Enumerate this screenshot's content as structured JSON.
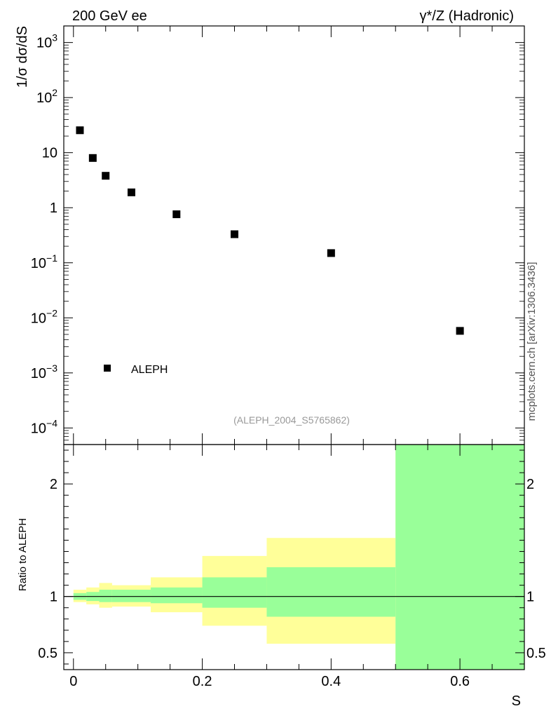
{
  "header": {
    "left": "200 GeV ee",
    "right": "γ*/Z (Hadronic)"
  },
  "side_label": "mcplots.cern.ch [arXiv:1306.3436]",
  "analysis_id": "(ALEPH_2004_S5765862)",
  "colors": {
    "band_inner": "#99ff99",
    "band_outer": "#ffff99",
    "marker": "#000000"
  },
  "chart_data": [
    {
      "type": "scatter",
      "panel": "main",
      "ylabel": "1/σ  dσ/dS",
      "yscale": "log",
      "ylim": [
        5e-05,
        2000
      ],
      "xlim": [
        -0.015,
        0.7
      ],
      "series": [
        {
          "name": "ALEPH",
          "marker": "square",
          "x": [
            0.01,
            0.03,
            0.05,
            0.09,
            0.16,
            0.25,
            0.4,
            0.6
          ],
          "y": [
            25.5,
            8.0,
            3.8,
            1.9,
            0.76,
            0.33,
            0.15,
            0.0058
          ]
        }
      ],
      "ytick_labels": [
        "10^3",
        "10^2",
        "10",
        "1",
        "10^-1",
        "10^-2",
        "10^-3",
        "10^-4"
      ],
      "legend": {
        "position": "bottom-left",
        "entries": [
          "ALEPH"
        ]
      }
    },
    {
      "type": "area",
      "panel": "ratio",
      "ylabel": "Ratio to ALEPH",
      "xlabel": "S",
      "ylim": [
        0.35,
        2.35
      ],
      "xlim": [
        -0.015,
        0.7
      ],
      "ratio_line": 1.0,
      "yticks": [
        0.5,
        1,
        2
      ],
      "ytick_labels": [
        "0.5",
        "1",
        "2"
      ],
      "xticks": [
        0,
        0.2,
        0.4,
        0.6
      ],
      "xtick_labels": [
        "0",
        "0.2",
        "0.4",
        "0.6"
      ],
      "bins": [
        {
          "x0": 0.0,
          "x1": 0.02,
          "inner": [
            0.97,
            1.03
          ],
          "outer": [
            0.95,
            1.06
          ]
        },
        {
          "x0": 0.02,
          "x1": 0.04,
          "inner": [
            0.96,
            1.04
          ],
          "outer": [
            0.93,
            1.08
          ]
        },
        {
          "x0": 0.04,
          "x1": 0.06,
          "inner": [
            0.95,
            1.06
          ],
          "outer": [
            0.9,
            1.12
          ]
        },
        {
          "x0": 0.06,
          "x1": 0.12,
          "inner": [
            0.95,
            1.06
          ],
          "outer": [
            0.91,
            1.1
          ]
        },
        {
          "x0": 0.12,
          "x1": 0.2,
          "inner": [
            0.94,
            1.08
          ],
          "outer": [
            0.86,
            1.17
          ]
        },
        {
          "x0": 0.2,
          "x1": 0.3,
          "inner": [
            0.9,
            1.17
          ],
          "outer": [
            0.74,
            1.36
          ]
        },
        {
          "x0": 0.3,
          "x1": 0.5,
          "inner": [
            0.82,
            1.26
          ],
          "outer": [
            0.58,
            1.52
          ]
        },
        {
          "x0": 0.5,
          "x1": 0.7,
          "inner": [
            0.35,
            2.35
          ],
          "outer": [
            0.35,
            2.35
          ]
        }
      ]
    }
  ]
}
